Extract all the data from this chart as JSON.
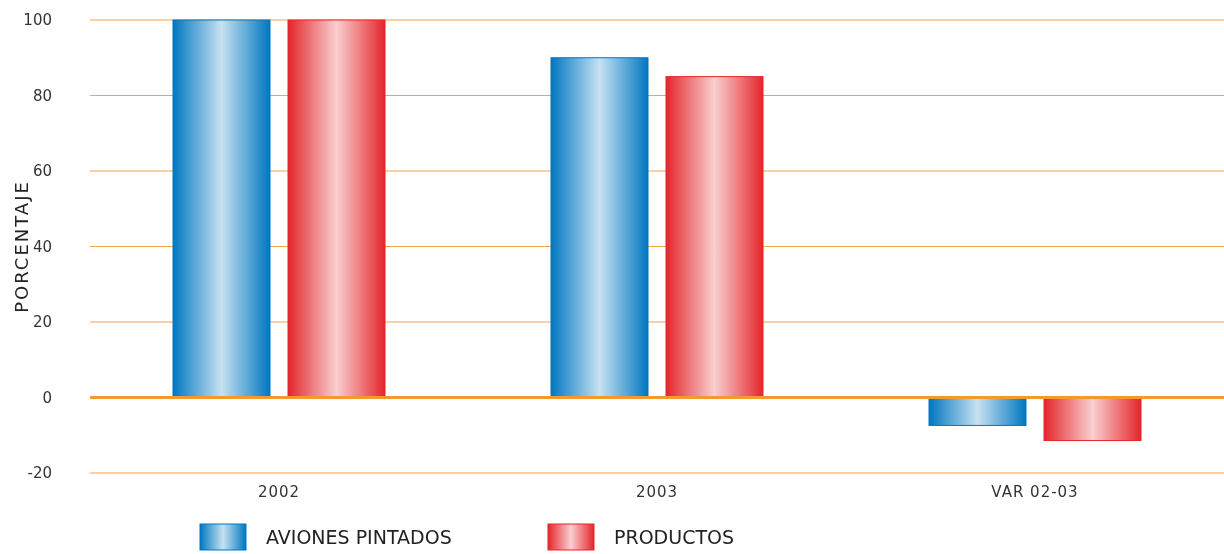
{
  "chart_data": {
    "type": "bar",
    "ylabel": "PORCENTAJE",
    "categories": [
      "2002",
      "2003",
      "VAR 02-03"
    ],
    "series": [
      {
        "name": "AVIONES PINTADOS",
        "color": "#0077c0",
        "values": [
          100,
          90,
          -7.4
        ]
      },
      {
        "name": "PRODUCTOS",
        "color": "#e4262b",
        "values": [
          100,
          85,
          -11.4
        ]
      }
    ],
    "ylim": [
      -20,
      100
    ],
    "yticks": [
      -20,
      0,
      20,
      40,
      60,
      80,
      100
    ],
    "grid": "y",
    "legend": "bottom",
    "ref_lines": [
      {
        "axis": "y",
        "value": 0,
        "color": "#f39a2e"
      }
    ]
  }
}
